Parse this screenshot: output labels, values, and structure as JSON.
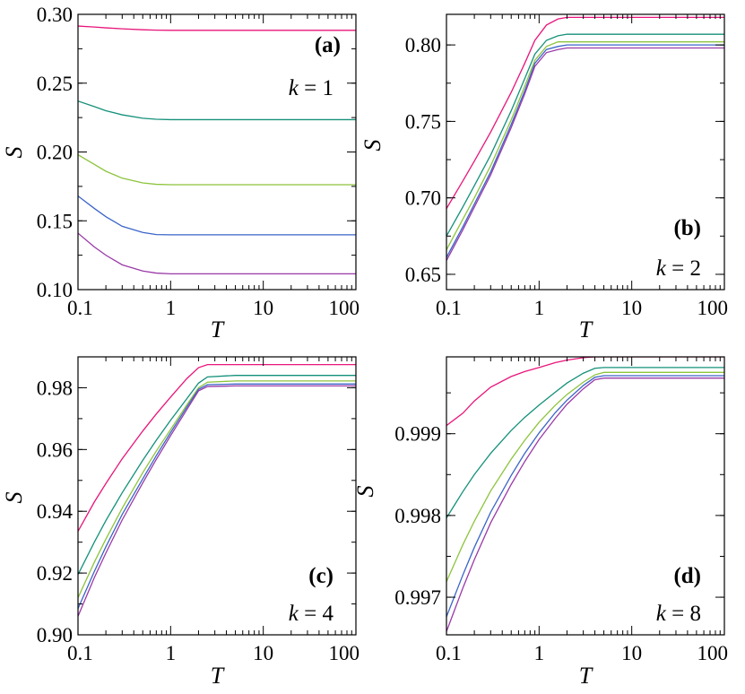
{
  "figure": {
    "colors": {
      "s1": "#e8157a",
      "s2": "#14907a",
      "s3": "#8cc43c",
      "s4": "#3a64c8",
      "s5": "#9a3aa8"
    }
  },
  "chart_data": [
    {
      "id": "a",
      "type": "line",
      "panel_label": "(a)",
      "k_var": "k",
      "k_eq": " = 1",
      "xlabel": "T",
      "ylabel": "S",
      "xscale": "log",
      "xlim": [
        0.1,
        100
      ],
      "ylim": [
        0.1,
        0.3
      ],
      "xticks": [
        0.1,
        1,
        10,
        100
      ],
      "xtick_labels": [
        "0.1",
        "1",
        "10",
        "100"
      ],
      "yticks": [
        0.1,
        0.15,
        0.2,
        0.25,
        0.3
      ],
      "ytick_labels": [
        "0.10",
        "0.15",
        "0.20",
        "0.25",
        "0.30"
      ],
      "x": [
        0.1,
        0.15,
        0.2,
        0.3,
        0.5,
        0.7,
        1,
        2,
        5,
        10,
        20,
        50,
        100
      ],
      "series": [
        {
          "name": "s1",
          "color_key": "s1",
          "values": [
            0.2915,
            0.2908,
            0.2902,
            0.2895,
            0.2888,
            0.2885,
            0.2884,
            0.2884,
            0.2884,
            0.2884,
            0.2884,
            0.2884,
            0.2884
          ]
        },
        {
          "name": "s2",
          "color_key": "s2",
          "values": [
            0.237,
            0.233,
            0.23,
            0.227,
            0.2245,
            0.2238,
            0.2235,
            0.2235,
            0.2235,
            0.2235,
            0.2235,
            0.2235,
            0.2235
          ]
        },
        {
          "name": "s3",
          "color_key": "s3",
          "values": [
            0.198,
            0.191,
            0.186,
            0.181,
            0.1775,
            0.1765,
            0.1762,
            0.1762,
            0.1762,
            0.1762,
            0.1762,
            0.1762,
            0.1762
          ]
        },
        {
          "name": "s4",
          "color_key": "s4",
          "values": [
            0.168,
            0.159,
            0.153,
            0.146,
            0.1415,
            0.14,
            0.1398,
            0.1398,
            0.1398,
            0.1398,
            0.1398,
            0.1398,
            0.1398
          ]
        },
        {
          "name": "s5",
          "color_key": "s5",
          "values": [
            0.141,
            0.131,
            0.125,
            0.118,
            0.1135,
            0.112,
            0.1115,
            0.1115,
            0.1115,
            0.1115,
            0.1115,
            0.1115,
            0.1115
          ]
        }
      ]
    },
    {
      "id": "b",
      "type": "line",
      "panel_label": "(b)",
      "k_var": "k",
      "k_eq": " = 2",
      "xlabel": "T",
      "ylabel": "S",
      "xscale": "log",
      "xlim": [
        0.1,
        100
      ],
      "ylim": [
        0.64,
        0.82
      ],
      "xticks": [
        0.1,
        1,
        10,
        100
      ],
      "xtick_labels": [
        "0.1",
        "1",
        "10",
        "100"
      ],
      "yticks": [
        0.65,
        0.7,
        0.75,
        0.8
      ],
      "ytick_labels": [
        "0.65",
        "0.70",
        "0.75",
        "0.80"
      ],
      "x": [
        0.1,
        0.15,
        0.2,
        0.3,
        0.5,
        0.7,
        0.9,
        1.2,
        1.6,
        2,
        5,
        10,
        20,
        50,
        100
      ],
      "series": [
        {
          "name": "s1",
          "color_key": "s1",
          "values": [
            0.693,
            0.711,
            0.724,
            0.743,
            0.769,
            0.788,
            0.803,
            0.813,
            0.817,
            0.818,
            0.818,
            0.818,
            0.818,
            0.818,
            0.818
          ]
        },
        {
          "name": "s2",
          "color_key": "s2",
          "values": [
            0.675,
            0.694,
            0.708,
            0.728,
            0.757,
            0.778,
            0.794,
            0.803,
            0.806,
            0.807,
            0.807,
            0.807,
            0.807,
            0.807,
            0.807
          ]
        },
        {
          "name": "s3",
          "color_key": "s3",
          "values": [
            0.666,
            0.686,
            0.7,
            0.721,
            0.751,
            0.773,
            0.79,
            0.799,
            0.802,
            0.802,
            0.802,
            0.802,
            0.802,
            0.802,
            0.802
          ]
        },
        {
          "name": "s4",
          "color_key": "s4",
          "values": [
            0.661,
            0.681,
            0.696,
            0.717,
            0.748,
            0.77,
            0.788,
            0.797,
            0.799,
            0.8,
            0.8,
            0.8,
            0.8,
            0.8,
            0.8
          ]
        },
        {
          "name": "s5",
          "color_key": "s5",
          "values": [
            0.659,
            0.679,
            0.694,
            0.715,
            0.746,
            0.768,
            0.786,
            0.795,
            0.797,
            0.798,
            0.798,
            0.798,
            0.798,
            0.798,
            0.798
          ]
        }
      ]
    },
    {
      "id": "c",
      "type": "line",
      "panel_label": "(c)",
      "k_var": "k",
      "k_eq": " = 4",
      "xlabel": "T",
      "ylabel": "S",
      "xscale": "log",
      "xlim": [
        0.1,
        100
      ],
      "ylim": [
        0.9,
        0.99
      ],
      "xticks": [
        0.1,
        1,
        10,
        100
      ],
      "xtick_labels": [
        "0.1",
        "1",
        "10",
        "100"
      ],
      "yticks": [
        0.9,
        0.92,
        0.94,
        0.96,
        0.98
      ],
      "ytick_labels": [
        "0.90",
        "0.92",
        "0.94",
        "0.96",
        "0.98"
      ],
      "x": [
        0.1,
        0.15,
        0.2,
        0.3,
        0.5,
        0.7,
        1,
        1.5,
        2,
        2.5,
        5,
        10,
        20,
        50,
        100
      ],
      "series": [
        {
          "name": "s1",
          "color_key": "s1",
          "values": [
            0.9335,
            0.943,
            0.949,
            0.957,
            0.966,
            0.9715,
            0.977,
            0.983,
            0.9865,
            0.9875,
            0.9875,
            0.9875,
            0.9875,
            0.9875,
            0.9875
          ]
        },
        {
          "name": "s2",
          "color_key": "s2",
          "values": [
            0.9195,
            0.93,
            0.937,
            0.946,
            0.9565,
            0.963,
            0.9695,
            0.9765,
            0.9815,
            0.9835,
            0.984,
            0.984,
            0.984,
            0.984,
            0.984
          ]
        },
        {
          "name": "s3",
          "color_key": "s3",
          "values": [
            0.912,
            0.9235,
            0.931,
            0.941,
            0.9525,
            0.9595,
            0.9665,
            0.9745,
            0.98,
            0.9818,
            0.9822,
            0.9822,
            0.9822,
            0.9822,
            0.9822
          ]
        },
        {
          "name": "s4",
          "color_key": "s4",
          "values": [
            0.9085,
            0.9205,
            0.9285,
            0.939,
            0.9505,
            0.958,
            0.9655,
            0.9738,
            0.9795,
            0.981,
            0.9812,
            0.9812,
            0.9812,
            0.9812,
            0.9812
          ]
        },
        {
          "name": "s5",
          "color_key": "s5",
          "values": [
            0.906,
            0.9185,
            0.9265,
            0.9372,
            0.9492,
            0.9568,
            0.9645,
            0.973,
            0.979,
            0.9804,
            0.9806,
            0.9806,
            0.9806,
            0.9806,
            0.9806
          ]
        }
      ]
    },
    {
      "id": "d",
      "type": "line",
      "panel_label": "(d)",
      "k_var": "k",
      "k_eq": " = 8",
      "xlabel": "T",
      "ylabel": "S",
      "xscale": "log",
      "xlim": [
        0.1,
        100
      ],
      "ylim": [
        0.99654,
        0.99994
      ],
      "xticks": [
        0.1,
        1,
        10,
        100
      ],
      "xtick_labels": [
        "0.1",
        "1",
        "10",
        "100"
      ],
      "yticks": [
        0.997,
        0.998,
        0.999
      ],
      "ytick_labels": [
        "0.997",
        "0.998",
        "0.999"
      ],
      "x": [
        0.1,
        0.15,
        0.2,
        0.3,
        0.5,
        0.7,
        1,
        1.5,
        2,
        3,
        4,
        5,
        10,
        20,
        50,
        100
      ],
      "series": [
        {
          "name": "s1",
          "color_key": "s1",
          "values": [
            0.9991,
            0.99925,
            0.9994,
            0.99957,
            0.9997,
            0.99976,
            0.99981,
            0.99987,
            0.9999,
            0.99993,
            0.99994,
            0.99994,
            0.99994,
            0.99994,
            0.99994,
            0.99994
          ]
        },
        {
          "name": "s2",
          "color_key": "s2",
          "values": [
            0.99797,
            0.99829,
            0.9985,
            0.99876,
            0.99904,
            0.9992,
            0.99935,
            0.99951,
            0.99962,
            0.99974,
            0.9998,
            0.99981,
            0.99981,
            0.99981,
            0.99981,
            0.99981
          ]
        },
        {
          "name": "s3",
          "color_key": "s3",
          "values": [
            0.99719,
            0.99764,
            0.99793,
            0.9983,
            0.99869,
            0.99892,
            0.99914,
            0.99935,
            0.99948,
            0.99963,
            0.99972,
            0.99975,
            0.99975,
            0.99975,
            0.99975,
            0.99975
          ]
        },
        {
          "name": "s4",
          "color_key": "s4",
          "values": [
            0.99676,
            0.99727,
            0.99761,
            0.99804,
            0.99849,
            0.99876,
            0.99901,
            0.99926,
            0.99941,
            0.99959,
            0.99969,
            0.99971,
            0.99971,
            0.99971,
            0.99971,
            0.99971
          ]
        },
        {
          "name": "s5",
          "color_key": "s5",
          "values": [
            0.99658,
            0.99711,
            0.99746,
            0.99791,
            0.99838,
            0.99866,
            0.99893,
            0.99919,
            0.99936,
            0.99955,
            0.99966,
            0.99968,
            0.99968,
            0.99968,
            0.99968,
            0.99968
          ]
        }
      ]
    }
  ]
}
